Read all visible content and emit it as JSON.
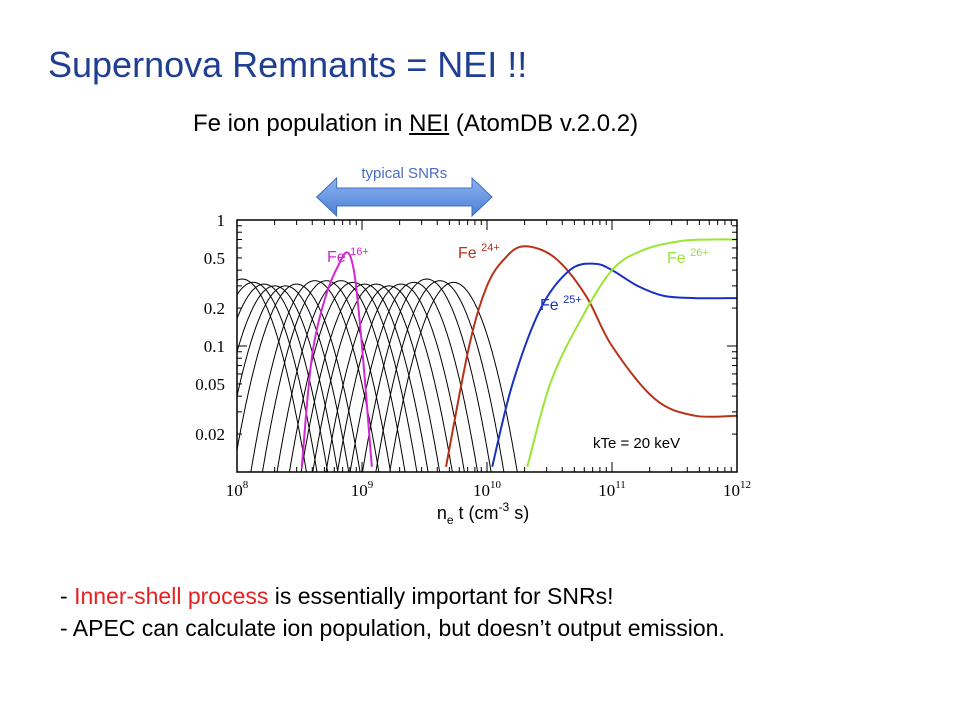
{
  "slide": {
    "title": "Supernova Remnants = NEI !!",
    "subtitle_pre": "Fe ion population in ",
    "subtitle_link": "NEI",
    "subtitle_post": " (AtomDB v.2.0.2)"
  },
  "bullets": [
    {
      "dash": "- ",
      "highlight": "Inner-shell process",
      "rest": " is essentially important for SNRs!"
    },
    {
      "dash": "- ",
      "highlight": "",
      "rest": "APEC can calculate ion population, but doesn’t output emission."
    }
  ],
  "colors": {
    "title": "#1f3f93",
    "highlight": "#e8201f",
    "arrow": "#4a7fd6",
    "arrow_label": "#4a6ec4",
    "fe16": "#d427d4",
    "fe24": "#b83218",
    "fe25": "#1a2fc4",
    "fe26": "#99e633",
    "other_ions": "#000000"
  },
  "chart_data": {
    "type": "line",
    "xscale": "log",
    "yscale": "log",
    "xlim": [
      100000000.0,
      1000000000000.0
    ],
    "ylim": [
      0.01,
      1
    ],
    "x_ticks": [
      {
        "base": "10",
        "exp": "8"
      },
      {
        "base": "10",
        "exp": "9"
      },
      {
        "base": "10",
        "exp": "10"
      },
      {
        "base": "10",
        "exp": "11"
      },
      {
        "base": "10",
        "exp": "12"
      }
    ],
    "y_ticks": [
      "1",
      "0.5",
      "0.2",
      "0.1",
      "0.05",
      "0.02"
    ],
    "xlabel": {
      "n": "n",
      "sub": "e",
      "t": " t (cm",
      "sup": "-3",
      "s": " s)"
    },
    "annotation_text": "kTe = 20 keV",
    "arrow_label": "typical SNRs",
    "arrow_range": [
      300000000.0,
      10000000000.0
    ],
    "series": [
      {
        "name_base": "Fe",
        "name_sup": "16+",
        "color_key": "fe16",
        "x": [
          330000000.0,
          410000000.0,
          620000000.0,
          860000000.0,
          1200000000.0
        ],
        "y": [
          0.011,
          0.1,
          0.4,
          0.4,
          0.011
        ]
      },
      {
        "name_base": "Fe",
        "name_sup": "24+",
        "color_key": "fe24",
        "x": [
          4700000000.0,
          7200000000.0,
          10000000000.0,
          14000000000.0,
          20000000000.0,
          35000000000.0,
          62000000000.0,
          100000000000.0,
          220000000000.0,
          460000000000.0,
          1000000000000.0
        ],
        "y": [
          0.011,
          0.1,
          0.3,
          0.5,
          0.62,
          0.5,
          0.25,
          0.1,
          0.038,
          0.028,
          0.028
        ]
      },
      {
        "name_base": "Fe",
        "name_sup": "25+",
        "color_key": "fe25",
        "x": [
          11000000000.0,
          16000000000.0,
          27000000000.0,
          46000000000.0,
          72000000000.0,
          100000000000.0,
          160000000000.0,
          260000000000.0,
          460000000000.0,
          1000000000000.0
        ],
        "y": [
          0.011,
          0.05,
          0.2,
          0.4,
          0.45,
          0.4,
          0.3,
          0.25,
          0.24,
          0.24
        ]
      },
      {
        "name_base": "Fe",
        "name_sup": "26+",
        "color_key": "fe26",
        "x": [
          21000000000.0,
          32000000000.0,
          54000000000.0,
          100000000000.0,
          180000000000.0,
          350000000000.0,
          620000000000.0,
          1000000000000.0
        ],
        "y": [
          0.011,
          0.05,
          0.15,
          0.4,
          0.58,
          0.68,
          0.7,
          0.7
        ]
      }
    ]
  }
}
